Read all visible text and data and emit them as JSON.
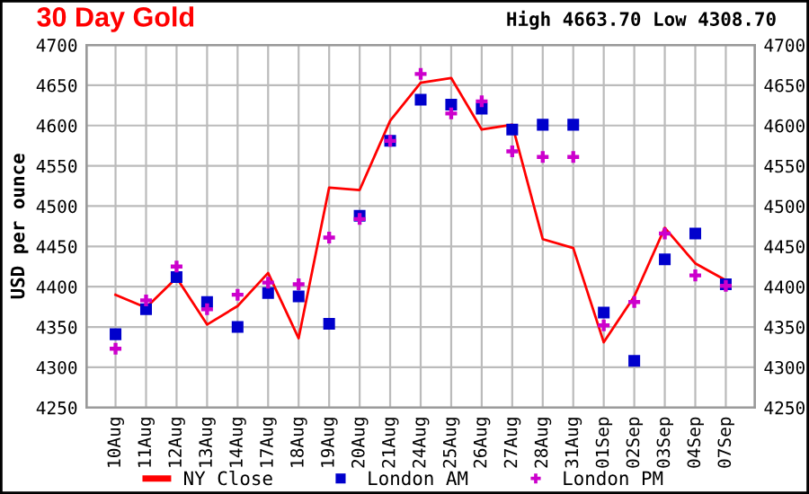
{
  "chart_data": {
    "type": "line",
    "title": "30 Day Gold",
    "annotations": [
      "High 4663.70 Low 4308.70"
    ],
    "ylabel": "USD per ounce",
    "categories": [
      "10Aug",
      "11Aug",
      "12Aug",
      "13Aug",
      "14Aug",
      "17Aug",
      "18Aug",
      "19Aug",
      "20Aug",
      "21Aug",
      "24Aug",
      "25Aug",
      "26Aug",
      "27Aug",
      "28Aug",
      "31Aug",
      "01Sep",
      "02Sep",
      "03Sep",
      "04Sep",
      "07Sep"
    ],
    "series": [
      {
        "name": "NY Close",
        "marker": "none",
        "color": "#ff0000",
        "values": [
          4390,
          4374,
          4411,
          4353,
          4376,
          4417,
          4336,
          4523,
          4520,
          4606,
          4653,
          4659,
          4595,
          4601,
          4459,
          4448,
          4331,
          4388,
          4473,
          4429,
          4408
        ]
      },
      {
        "name": "London AM",
        "type": "scatter",
        "marker": "square",
        "color": "#0000cc",
        "values": [
          4341,
          4372,
          4412,
          4381,
          4350,
          4392,
          4388,
          4354,
          4488,
          4581,
          4632,
          4626,
          4621,
          4595,
          4601,
          4601,
          4368,
          4308,
          4434,
          4466,
          4403
        ]
      },
      {
        "name": "London PM",
        "type": "scatter",
        "marker": "cross",
        "color": "#cc00cc",
        "values": [
          4323,
          4383,
          4425,
          4372,
          4390,
          4405,
          4403,
          4461,
          4484,
          4581,
          4664,
          4615,
          4630,
          4568,
          4561,
          4561,
          4352,
          4381,
          4466,
          4414,
          4401
        ]
      }
    ],
    "ylim": [
      4250,
      4700
    ],
    "yticks": [
      4250,
      4300,
      4350,
      4400,
      4450,
      4500,
      4550,
      4600,
      4650,
      4700
    ],
    "y2lim": [
      4250,
      4700
    ],
    "y2ticks": [
      4250,
      4300,
      4350,
      4400,
      4450,
      4500,
      4550,
      4600,
      4650,
      4700
    ],
    "grid": true,
    "legend": "bottom"
  }
}
